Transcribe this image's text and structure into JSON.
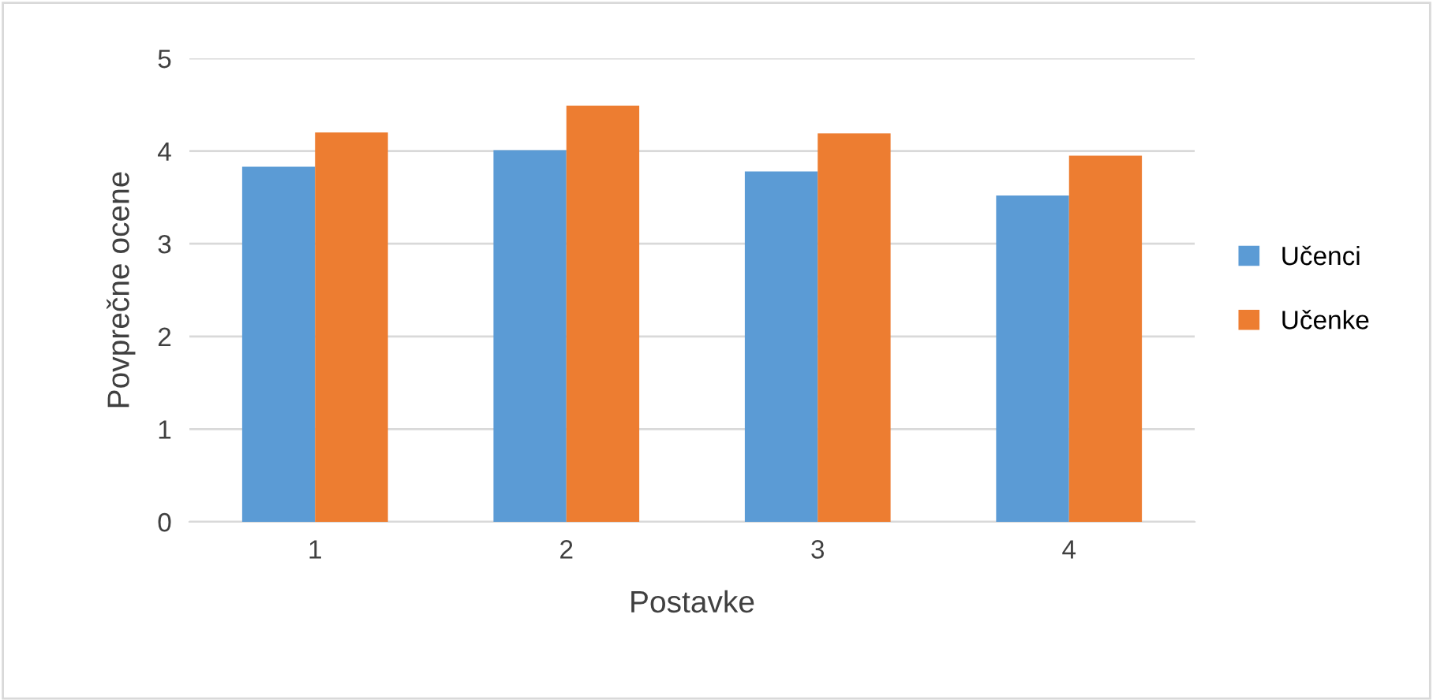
{
  "chart_data": {
    "type": "bar",
    "xlabel": "Postavke",
    "ylabel": "Povprečne ocene",
    "categories": [
      "1",
      "2",
      "3",
      "4"
    ],
    "series": [
      {
        "name": "Učenci",
        "color": "#5b9bd5",
        "values": [
          3.83,
          4.01,
          3.78,
          3.52
        ]
      },
      {
        "name": "Učenke",
        "color": "#ed7d31",
        "values": [
          4.2,
          4.49,
          4.19,
          3.95
        ]
      }
    ],
    "ylim": [
      0,
      5
    ],
    "yticks": [
      0,
      1,
      2,
      3,
      4,
      5
    ],
    "grid": "y",
    "legend": "right"
  }
}
